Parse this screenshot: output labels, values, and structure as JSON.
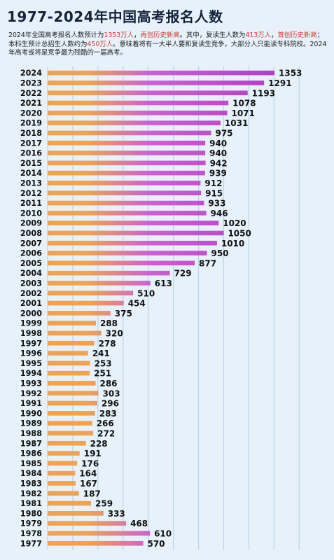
{
  "title": "1977-2024年中国高考报名人数",
  "description": [
    {
      "text": "2024年全国高考报名人数预计为",
      "hl": false
    },
    {
      "text": "1353万人",
      "hl": true
    },
    {
      "text": "，",
      "hl": false
    },
    {
      "text": "再创历史新高",
      "hl": true
    },
    {
      "text": "。其中，复读生人数为",
      "hl": false
    },
    {
      "text": "413万人",
      "hl": true
    },
    {
      "text": "，",
      "hl": false
    },
    {
      "text": "首创历史新高",
      "hl": true
    },
    {
      "text": "；本科生预计总招生人数约为",
      "hl": false
    },
    {
      "text": "450万人",
      "hl": true
    },
    {
      "text": "。意味着将有一大半人要和复读生竞争，大部分人只能读专科院校。2024年高考或将是竞争最为残酷的一届高考。",
      "hl": false
    }
  ],
  "colors": {
    "bar_start": "#f0a24e",
    "bar_mid": "#cf5fd3",
    "bar_end": "#b63bc7",
    "background": "#e6f1f9",
    "grid": "#b9d6ec",
    "highlight": "#d13a2f"
  },
  "chart_data": {
    "type": "bar",
    "orientation": "horizontal",
    "grid": true,
    "xlim": [
      0,
      1500
    ],
    "categories": [
      "2024",
      "2023",
      "2022",
      "2021",
      "2020",
      "2019",
      "2018",
      "2017",
      "2016",
      "2015",
      "2014",
      "2013",
      "2012",
      "2011",
      "2010",
      "2009",
      "2008",
      "2007",
      "2006",
      "2005",
      "2004",
      "2003",
      "2002",
      "2001",
      "2000",
      "1999",
      "1998",
      "1997",
      "1996",
      "1995",
      "1994",
      "1993",
      "1992",
      "1991",
      "1990",
      "1989",
      "1988",
      "1987",
      "1986",
      "1985",
      "1984",
      "1983",
      "1982",
      "1981",
      "1980",
      "1979",
      "1978",
      "1977"
    ],
    "values": [
      1353,
      1291,
      1193,
      1078,
      1071,
      1031,
      975,
      940,
      940,
      942,
      939,
      912,
      915,
      933,
      946,
      1020,
      1050,
      1010,
      950,
      877,
      729,
      613,
      510,
      454,
      375,
      288,
      320,
      278,
      241,
      253,
      251,
      286,
      303,
      296,
      283,
      266,
      272,
      228,
      191,
      176,
      164,
      167,
      187,
      259,
      333,
      468,
      610,
      570
    ]
  }
}
